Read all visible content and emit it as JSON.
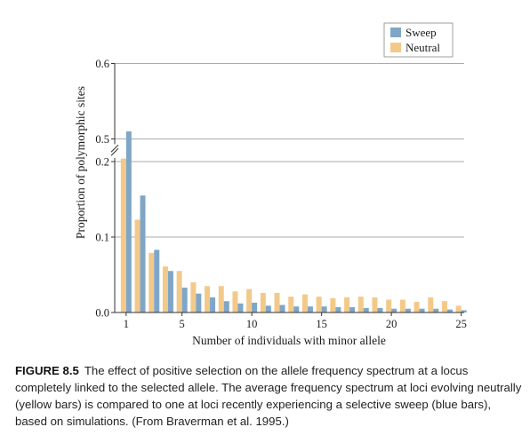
{
  "chart_data": {
    "type": "bar",
    "x": [
      1,
      2,
      3,
      4,
      5,
      6,
      7,
      8,
      9,
      10,
      11,
      12,
      13,
      14,
      15,
      16,
      17,
      18,
      19,
      20,
      21,
      22,
      23,
      24,
      25
    ],
    "series": [
      {
        "name": "Sweep",
        "color": "#7fa6c6",
        "values": [
          0.51,
          0.155,
          0.083,
          0.055,
          0.033,
          0.025,
          0.02,
          0.015,
          0.012,
          0.013,
          0.009,
          0.01,
          0.008,
          0.008,
          0.008,
          0.007,
          0.007,
          0.006,
          0.006,
          0.005,
          0.005,
          0.005,
          0.005,
          0.004,
          0.003
        ]
      },
      {
        "name": "Neutral",
        "color": "#f3c98a",
        "values": [
          0.24,
          0.123,
          0.079,
          0.061,
          0.055,
          0.04,
          0.035,
          0.035,
          0.028,
          0.031,
          0.026,
          0.026,
          0.021,
          0.024,
          0.021,
          0.019,
          0.02,
          0.021,
          0.02,
          0.017,
          0.017,
          0.014,
          0.02,
          0.015,
          0.009
        ]
      }
    ],
    "xlabel": "Number of individuals with minor allele",
    "ylabel": "Proportion of polymorphic sites",
    "xticks": [
      1,
      5,
      10,
      15,
      20,
      25
    ],
    "yticks": [
      "0.0",
      "0.1",
      "0.2",
      "0.5",
      "0.6"
    ],
    "ylim": [
      0,
      0.6
    ],
    "axis_break": "y-axis break between 0.2 and 0.5",
    "grid": true,
    "legend": "top-right"
  },
  "caption": {
    "label": "FIGURE 8.5",
    "text": "The effect of positive selection on the allele frequency spectrum at a locus completely linked to the selected allele. The average frequency spectrum at loci evolving neutrally (yellow bars) is compared to one at loci recently experiencing a selective sweep (blue bars), based on simulations. (From Braverman et al. 1995.)"
  }
}
